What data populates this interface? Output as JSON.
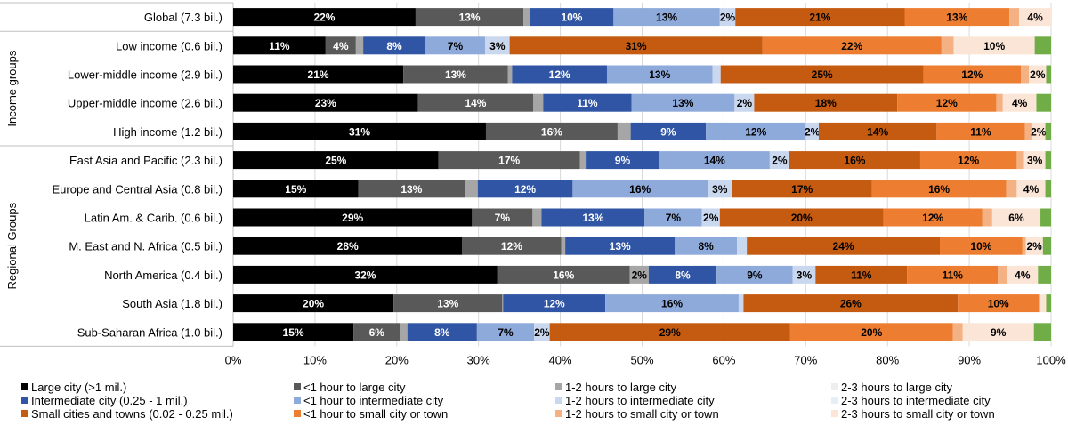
{
  "chart_data": {
    "type": "bar",
    "orientation": "horizontal",
    "stacked": true,
    "xlim": [
      0,
      100
    ],
    "x_ticks": [
      "0%",
      "10%",
      "20%",
      "30%",
      "40%",
      "50%",
      "60%",
      "70%",
      "80%",
      "90%",
      "100%"
    ],
    "groups": [
      {
        "label": "",
        "rows": [
          0
        ]
      },
      {
        "label": "Income groups",
        "rows": [
          1,
          2,
          3,
          4
        ]
      },
      {
        "label": "Regional Groups",
        "rows": [
          5,
          6,
          7,
          8,
          9,
          10,
          11
        ]
      }
    ],
    "categories": [
      "Global (7.3 bil.)",
      "Low income (0.6 bil.)",
      "Lower-middle income (2.9 bil.)",
      "Upper-middle income (2.6 bil.)",
      "High income (1.2 bil.)",
      "East Asia and Pacific (2.3 bil.)",
      "Europe and Central Asia (0.8 bil.)",
      "Latin Am. & Carib. (0.6 bil.)",
      "M. East and N. Africa (0.5 bil.)",
      "North America (0.4 bil.)",
      "South Asia (1.8 bil.)",
      "Sub-Saharan Africa (1.0 bil.)"
    ],
    "series": [
      {
        "name": "Large city (>1 mil.)",
        "color": "#000000",
        "label_color": "#ffffff",
        "values": [
          22.3,
          11.3,
          20.8,
          22.6,
          30.9,
          25.1,
          15.3,
          29.2,
          28.0,
          32.3,
          19.6,
          14.7
        ]
      },
      {
        "name": "<1 hour to large city",
        "color": "#595959",
        "label_color": "#ffffff",
        "values": [
          13.2,
          3.7,
          12.8,
          14.1,
          16.1,
          17.3,
          13.0,
          7.4,
          12.1,
          16.2,
          13.3,
          5.7
        ]
      },
      {
        "name": "1-2 hours to large city",
        "color": "#a6a6a6",
        "label_color": "#000000",
        "values": [
          0.8,
          0.9,
          0.5,
          1.2,
          1.6,
          0.7,
          1.6,
          1.1,
          0.5,
          2.3,
          0.1,
          0.9
        ]
      },
      {
        "name": "2-3 hours to large city",
        "color": "#eeeeee",
        "label_color": "#000000",
        "values": [
          0,
          0,
          0,
          0,
          0,
          0,
          0,
          0,
          0,
          0,
          0,
          0
        ]
      },
      {
        "name": "Intermediate city (0.25 - 1 mil.)",
        "color": "#2f55a4",
        "label_color": "#ffffff",
        "values": [
          10.2,
          7.6,
          11.6,
          10.8,
          9.2,
          9.0,
          11.6,
          12.6,
          13.4,
          8.3,
          12.5,
          8.5
        ]
      },
      {
        "name": "<1 hour to intermediate city",
        "color": "#8eaadb",
        "label_color": "#000000",
        "values": [
          13.0,
          7.3,
          12.9,
          12.6,
          12.2,
          13.5,
          16.5,
          7.0,
          7.6,
          9.3,
          16.3,
          7.0
        ]
      },
      {
        "name": "1-2 hours to intermediate city",
        "color": "#c9d7ef",
        "label_color": "#000000",
        "values": [
          1.9,
          3.0,
          1.0,
          2.4,
          1.6,
          2.4,
          3.0,
          2.2,
          1.2,
          2.8,
          0.6,
          1.9
        ]
      },
      {
        "name": "2-3 hours to intermediate city",
        "color": "#e7eef8",
        "label_color": "#000000",
        "values": [
          0,
          0,
          0,
          0,
          0,
          0,
          0,
          0,
          0,
          0,
          0,
          0
        ]
      },
      {
        "name": "Small cities and towns (0.02 - 0.25 mil.)",
        "color": "#c55a11",
        "label_color": "#000000",
        "values": [
          20.7,
          30.9,
          24.8,
          17.5,
          14.4,
          16.0,
          17.1,
          20.0,
          23.6,
          11.2,
          26.2,
          29.4
        ]
      },
      {
        "name": "<1 hour to small city or town",
        "color": "#ed7d31",
        "label_color": "#000000",
        "values": [
          12.8,
          21.9,
          11.9,
          12.1,
          10.8,
          11.8,
          16.4,
          12.1,
          10.1,
          11.1,
          9.9,
          19.9
        ]
      },
      {
        "name": "1-2 hours to small city or town",
        "color": "#f4b183",
        "label_color": "#000000",
        "values": [
          1.2,
          1.5,
          1.0,
          0.8,
          0.8,
          0.9,
          1.3,
          1.2,
          0.4,
          1.1,
          0.1,
          1.2
        ]
      },
      {
        "name": "2-3 hours to small city or town",
        "color": "#fbe5d6",
        "label_color": "#000000",
        "values": [
          3.9,
          9.9,
          2.1,
          4.1,
          1.7,
          2.6,
          3.5,
          5.9,
          2.1,
          3.8,
          0.8,
          8.7
        ]
      }
    ],
    "other": {
      "color": "#70ad47"
    },
    "display_labels": [
      [
        "22%",
        "13%",
        "",
        "",
        "10%",
        "13%",
        "2%",
        "",
        "21%",
        "13%",
        "",
        "4%"
      ],
      [
        "11%",
        "4%",
        "",
        "",
        "8%",
        "7%",
        "3%",
        "",
        "31%",
        "22%",
        "",
        "10%"
      ],
      [
        "21%",
        "13%",
        "",
        "",
        "12%",
        "13%",
        "",
        "",
        "25%",
        "12%",
        "",
        "2%"
      ],
      [
        "23%",
        "14%",
        "",
        "",
        "11%",
        "13%",
        "2%",
        "",
        "18%",
        "12%",
        "",
        "4%"
      ],
      [
        "31%",
        "16%",
        "",
        "",
        "9%",
        "12%",
        "2%",
        "",
        "14%",
        "11%",
        "",
        "2%"
      ],
      [
        "25%",
        "17%",
        "",
        "",
        "9%",
        "14%",
        "2%",
        "",
        "16%",
        "12%",
        "",
        "3%"
      ],
      [
        "15%",
        "13%",
        "",
        "",
        "12%",
        "16%",
        "3%",
        "",
        "17%",
        "16%",
        "",
        "4%"
      ],
      [
        "29%",
        "7%",
        "",
        "",
        "13%",
        "7%",
        "2%",
        "",
        "20%",
        "12%",
        "",
        "6%"
      ],
      [
        "28%",
        "12%",
        "",
        "",
        "13%",
        "8%",
        "",
        "",
        "24%",
        "10%",
        "",
        "2%"
      ],
      [
        "32%",
        "16%",
        "2%",
        "",
        "8%",
        "9%",
        "3%",
        "",
        "11%",
        "11%",
        "",
        "4%"
      ],
      [
        "20%",
        "13%",
        "",
        "",
        "12%",
        "16%",
        "",
        "",
        "26%",
        "10%",
        "",
        ""
      ],
      [
        "15%",
        "6%",
        "",
        "",
        "8%",
        "7%",
        "2%",
        "",
        "29%",
        "20%",
        "",
        "9%"
      ]
    ],
    "title": "",
    "xlabel": "",
    "ylabel": "",
    "grid": true,
    "legend_position": "bottom"
  }
}
